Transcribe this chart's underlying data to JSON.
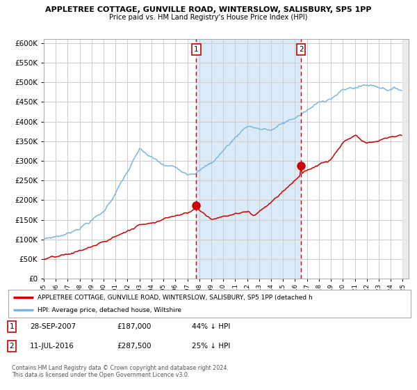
{
  "title": "APPLETREE COTTAGE, GUNVILLE ROAD, WINTERSLOW, SALISBURY, SP5 1PP",
  "subtitle": "Price paid vs. HM Land Registry's House Price Index (HPI)",
  "legend_line1": "APPLETREE COTTAGE, GUNVILLE ROAD, WINTERSLOW, SALISBURY, SP5 1PP (detached h",
  "legend_line2": "HPI: Average price, detached house, Wiltshire",
  "annotation1_date": "28-SEP-2007",
  "annotation1_price": "£187,000",
  "annotation1_text": "44% ↓ HPI",
  "annotation2_date": "11-JUL-2016",
  "annotation2_price": "£287,500",
  "annotation2_text": "25% ↓ HPI",
  "footer": "Contains HM Land Registry data © Crown copyright and database right 2024.\nThis data is licensed under the Open Government Licence v3.0.",
  "hpi_color": "#7ab6e0",
  "price_color": "#cc0000",
  "vline_color": "#cc0000",
  "grid_color": "#cccccc",
  "bg_color": "#ffffff",
  "fill_color": "#daeaf7",
  "ylim": [
    0,
    610000
  ],
  "yticks": [
    0,
    50000,
    100000,
    150000,
    200000,
    250000,
    300000,
    350000,
    400000,
    450000,
    500000,
    550000,
    600000
  ],
  "sale1_year": 2007.75,
  "sale2_year": 2016.5,
  "sale1_price": 187000,
  "sale2_price": 287500
}
